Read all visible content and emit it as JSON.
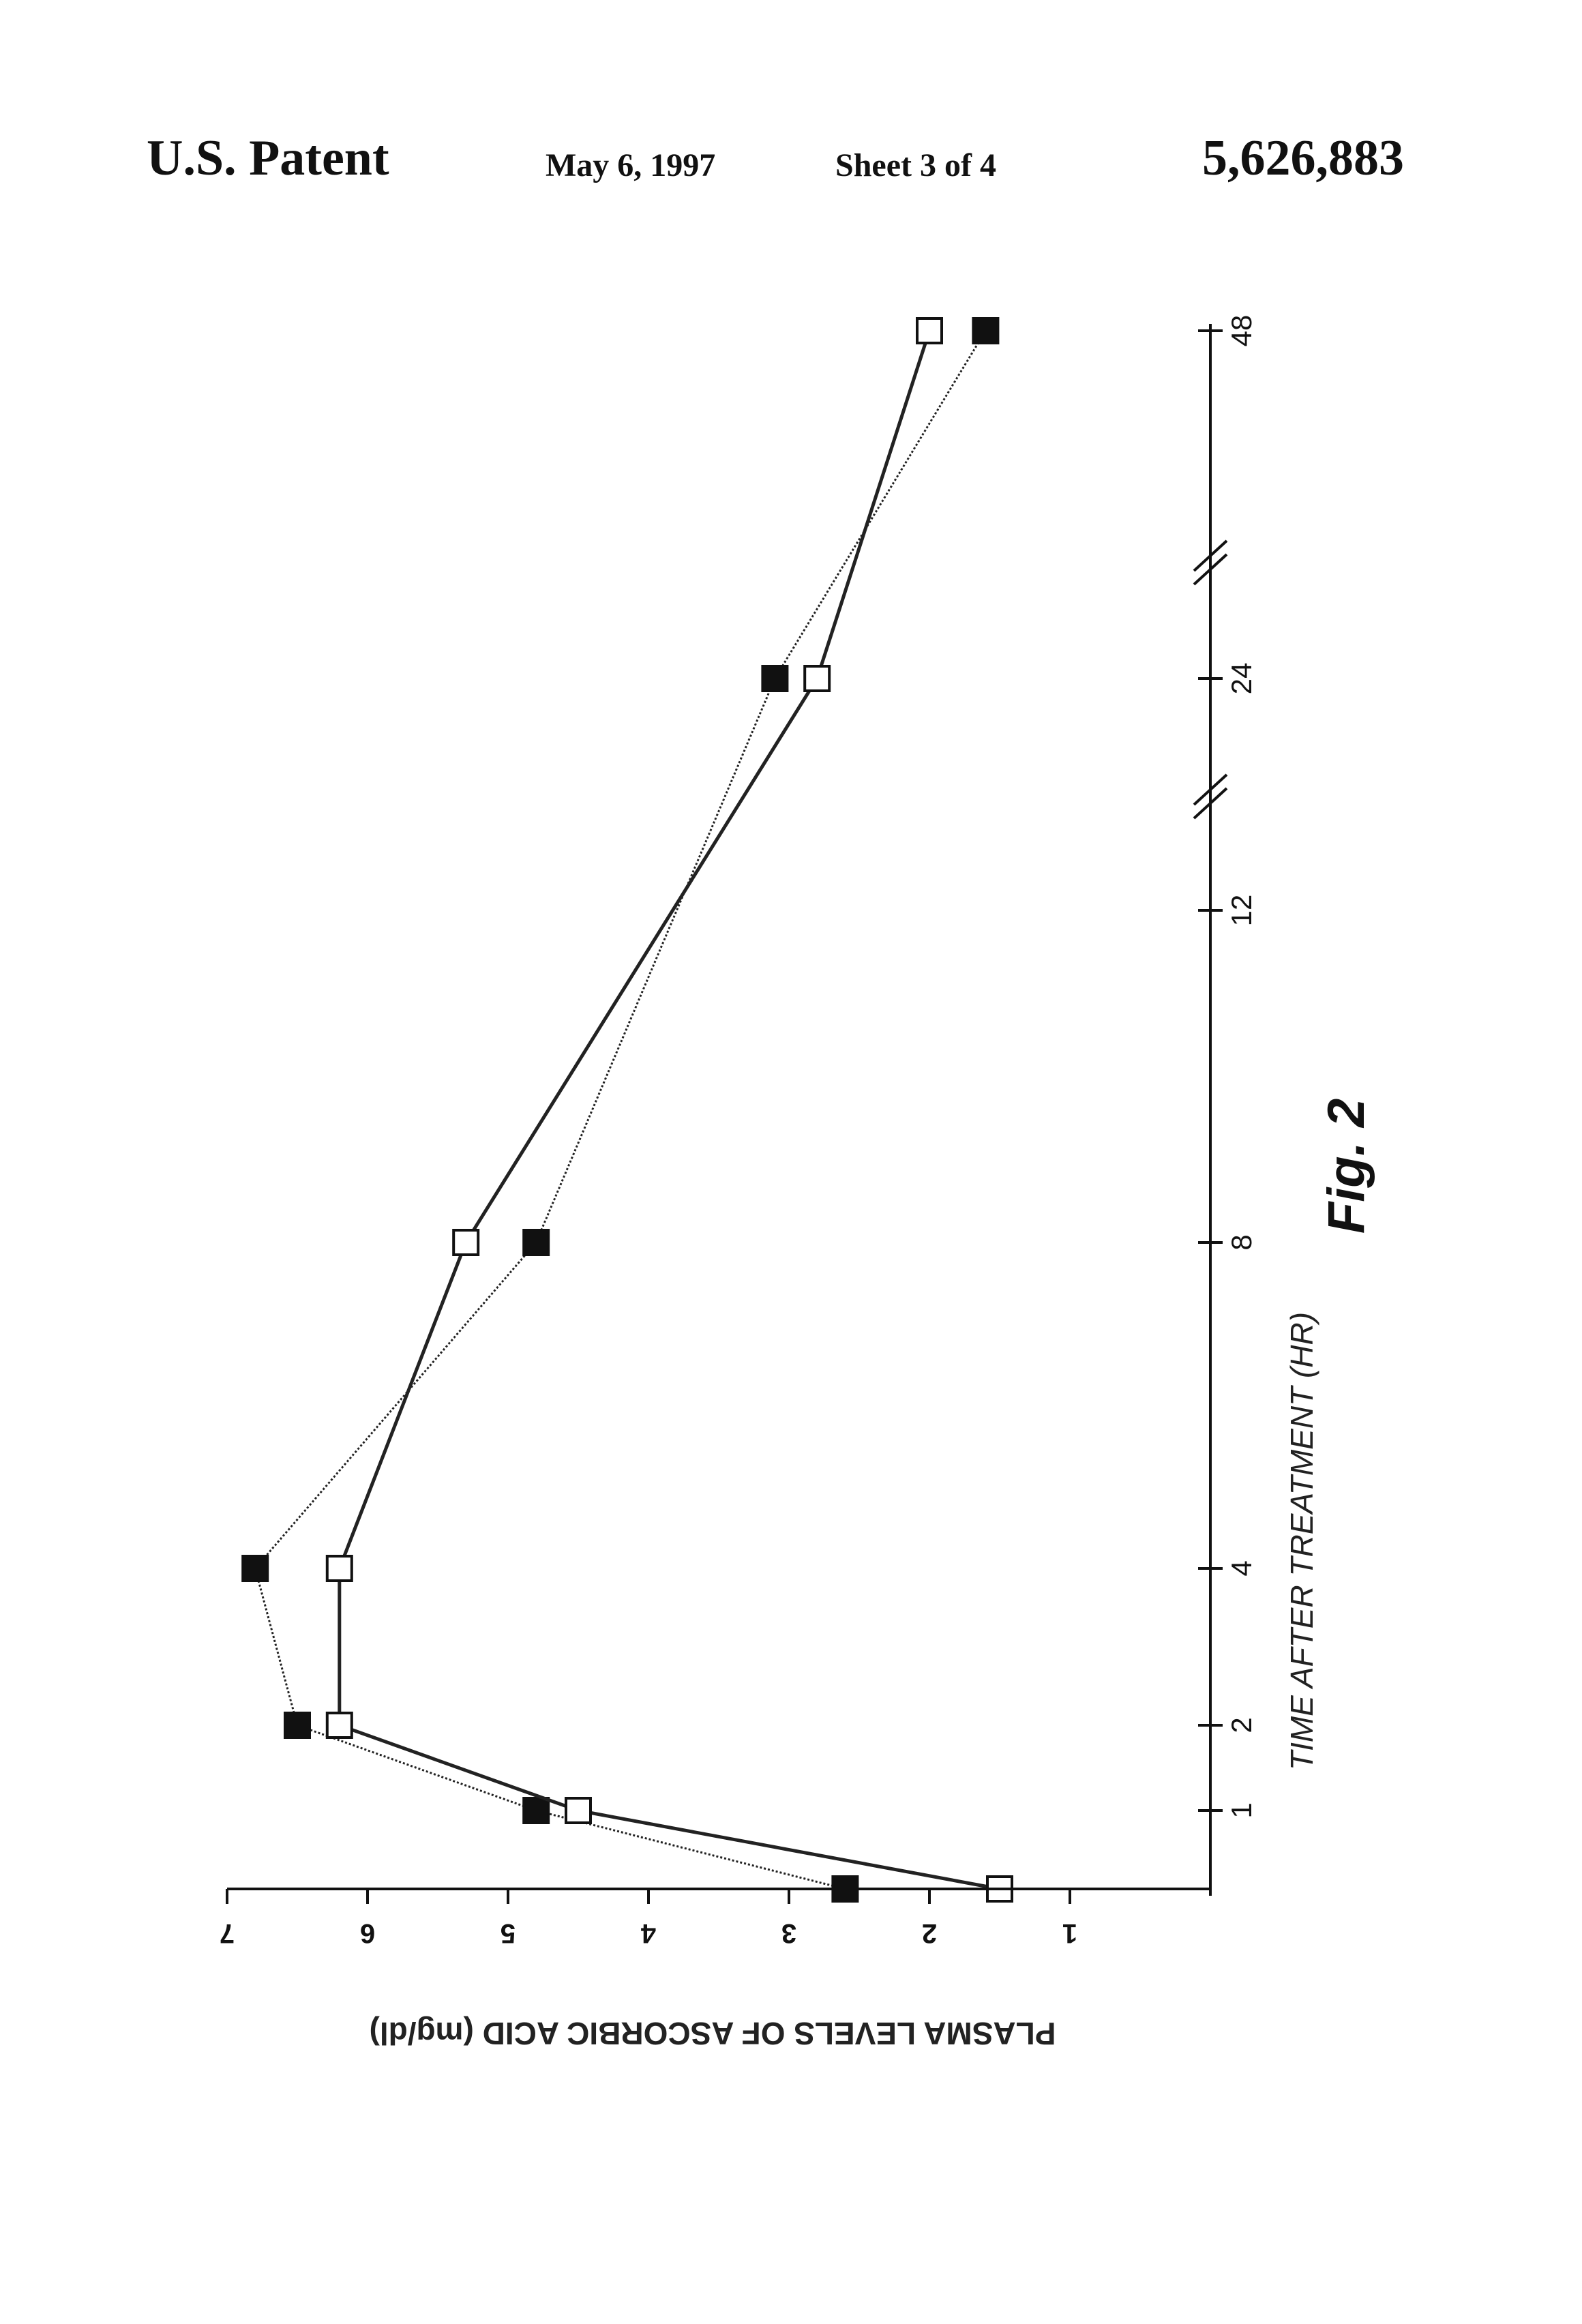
{
  "header": {
    "title": "U.S. Patent",
    "date": "May 6, 1997",
    "sheet": "Sheet 3 of 4",
    "patent_number": "5,626,883"
  },
  "chart_data": {
    "type": "line",
    "title": "",
    "figure_label": "Fig. 2",
    "xlabel": "TIME AFTER TREATMENT (HR)",
    "ylabel": "PLASMA LEVELS OF ASCORBIC ACID (mg/dl)",
    "x": [
      0,
      1,
      2,
      4,
      8,
      12,
      24,
      48
    ],
    "x_tick_labels": [
      "1",
      "2",
      "4",
      "8",
      "12",
      "24",
      "48"
    ],
    "x_axis_breaks": [
      "between 12 and 24",
      "between 24 and 48"
    ],
    "y_ticks": [
      1,
      2,
      3,
      4,
      5,
      6,
      7
    ],
    "ylim": [
      0,
      7
    ],
    "orientation": "rotated 90° (x axis vertical)",
    "grid": false,
    "legend": "none",
    "series": [
      {
        "marker": "filled-square",
        "line": "thin dotted",
        "points": [
          [
            0,
            2.6
          ],
          [
            1,
            4.8
          ],
          [
            2,
            6.5
          ],
          [
            4,
            6.8
          ],
          [
            8,
            4.8
          ],
          [
            24,
            3.1
          ],
          [
            48,
            1.6
          ]
        ]
      },
      {
        "marker": "open-square",
        "line": "solid",
        "points": [
          [
            0,
            1.5
          ],
          [
            1,
            4.5
          ],
          [
            2,
            6.2
          ],
          [
            4,
            6.2
          ],
          [
            8,
            5.3
          ],
          [
            24,
            2.8
          ],
          [
            48,
            2.0
          ]
        ]
      }
    ]
  }
}
